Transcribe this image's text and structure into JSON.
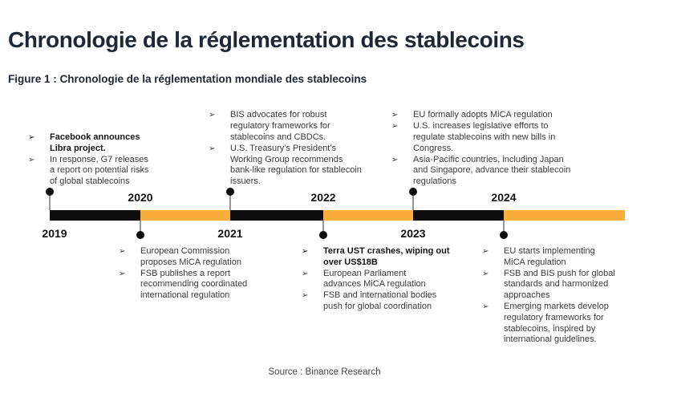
{
  "header": {
    "title": "Chronologie de la réglementation des stablecoins",
    "figure_caption": "Figure 1 : Chronologie de la réglementation mondiale des stablecoins"
  },
  "footer": {
    "source": "Source : Binance Research"
  },
  "colors": {
    "accent_orange": "#F9AE3B",
    "timeline_black": "#0D0D0D",
    "heading_navy": "#1E2733",
    "stem_gray": "#979797"
  },
  "timeline": {
    "bullet_glyph": "➢",
    "years": [
      "2019",
      "2020",
      "2021",
      "2022",
      "2023",
      "2024"
    ],
    "groups": [
      {
        "year": "2019",
        "side": "above",
        "events": [
          {
            "text": "Facebook announces\nLibra project.",
            "bold": true
          },
          {
            "text": "In response, G7 releases\na report on potential risks\nof global stablecoins",
            "bold": false
          }
        ]
      },
      {
        "year": "2020",
        "side": "below",
        "events": [
          {
            "text": "European Commission\nproposes MiCA regulation",
            "bold": false
          },
          {
            "text": "FSB publishes a report\nrecommending coordinated\ninternational regulation",
            "bold": false
          }
        ]
      },
      {
        "year": "2021",
        "side": "above",
        "events": [
          {
            "text": "BIS advocates for robust\nregulatory frameworks for\nstablecoins and CBDCs.",
            "bold": false
          },
          {
            "text": "U.S. Treasury's President's\nWorking Group recommends\nbank-like regulation for stablecoin\nissuers.",
            "bold": false
          }
        ]
      },
      {
        "year": "2022",
        "side": "below",
        "events": [
          {
            "text": "Terra UST crashes, wiping out\nover US$18B",
            "bold": true
          },
          {
            "text": "European Parliament\nadvances MiCA regulation",
            "bold": false
          },
          {
            "text": "FSB and international bodies\npush for global coordination",
            "bold": false
          }
        ]
      },
      {
        "year": "2023",
        "side": "above",
        "events": [
          {
            "text": "EU formally adopts MiCA regulation",
            "bold": false
          },
          {
            "text": "U.S. increases legislative efforts to\nregulate stablecoins with new bills in\nCongress.",
            "bold": false
          },
          {
            "text": "Asia-Pacific countries, including Japan\nand Singapore, advance their stablecoin\nregulations",
            "bold": false
          }
        ]
      },
      {
        "year": "2024",
        "side": "below",
        "events": [
          {
            "text": "EU starts implementing\nMiCA regulation",
            "bold": false
          },
          {
            "text": "FSB and BIS push for global\nstandards and harmonized\napproaches",
            "bold": false
          },
          {
            "text": "Emerging markets develop\nregulatory frameworks for\nstablecoins, inspired by\ninternational guidelines.",
            "bold": false
          }
        ]
      }
    ]
  }
}
